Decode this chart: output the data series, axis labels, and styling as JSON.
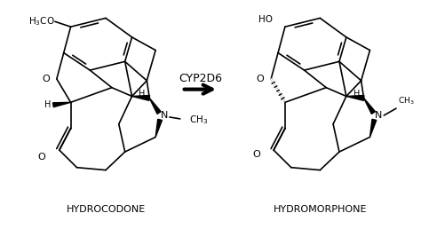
{
  "background_color": "#ffffff",
  "arrow_label": "CYP2D6",
  "arrow_label_fontsize": 9,
  "arrow_label_fontweight": "bold",
  "left_label": "HYDROCODONE",
  "right_label": "HYDROMORPHONE",
  "label_fontsize": 8,
  "label_fontweight": "bold",
  "figsize": [
    4.74,
    2.58
  ],
  "dpi": 100,
  "line_color": "#000000",
  "lw": 1.2,
  "lw_bold": 2.8
}
